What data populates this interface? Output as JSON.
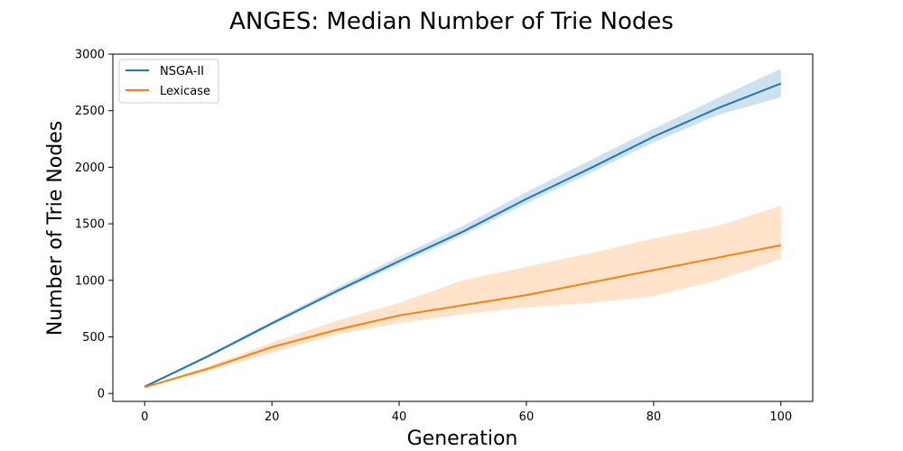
{
  "chart_data": {
    "type": "line",
    "title": "ANGES: Median Number of Trie Nodes",
    "xlabel": "Generation",
    "ylabel": "Number of Trie Nodes",
    "xlim": [
      -5,
      105
    ],
    "ylim": [
      -70,
      3000
    ],
    "xticks": [
      0,
      20,
      40,
      60,
      80,
      100
    ],
    "yticks": [
      0,
      500,
      1000,
      1500,
      2000,
      2500,
      3000
    ],
    "grid": false,
    "legend_position": "top-left",
    "series": [
      {
        "name": "NSGA-II",
        "color": "#1f77b4",
        "x": [
          0,
          10,
          20,
          30,
          40,
          50,
          60,
          70,
          80,
          90,
          100
        ],
        "median": [
          60,
          330,
          620,
          900,
          1170,
          1430,
          1720,
          1990,
          2270,
          2520,
          2740
        ],
        "lower": [
          55,
          320,
          600,
          880,
          1140,
          1400,
          1680,
          1950,
          2220,
          2460,
          2620
        ],
        "upper": [
          65,
          345,
          640,
          930,
          1210,
          1480,
          1780,
          2060,
          2340,
          2610,
          2870
        ]
      },
      {
        "name": "Lexicase",
        "color": "#ff7f0e",
        "x": [
          0,
          10,
          20,
          30,
          40,
          50,
          60,
          70,
          80,
          90,
          100
        ],
        "median": [
          55,
          220,
          410,
          560,
          690,
          780,
          870,
          980,
          1090,
          1200,
          1310
        ],
        "lower": [
          50,
          200,
          360,
          520,
          620,
          700,
          760,
          800,
          860,
          1000,
          1190
        ],
        "upper": [
          60,
          240,
          450,
          640,
          800,
          1000,
          1120,
          1240,
          1370,
          1480,
          1660
        ]
      }
    ]
  }
}
